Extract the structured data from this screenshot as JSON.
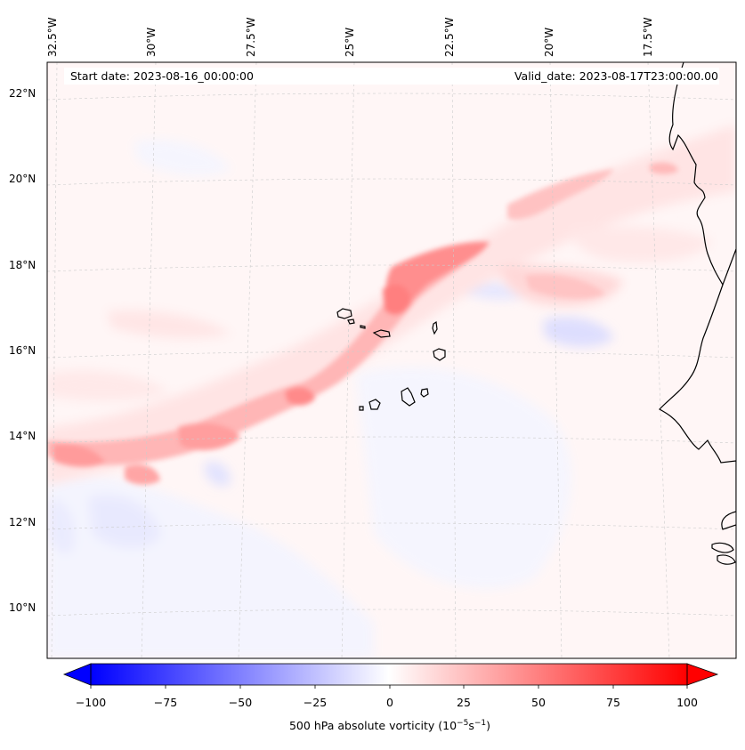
{
  "map": {
    "start_label": "Start date: 2023-08-16_00:00:00",
    "valid_label": "Valid_date: 2023-08-17T23:00:00.00",
    "lon_labels": [
      "32.5°W",
      "30°W",
      "27.5°W",
      "25°W",
      "22.5°W",
      "20°W",
      "17.5°W"
    ],
    "lat_labels": [
      "22°N",
      "20°N",
      "18°N",
      "16°N",
      "14°N",
      "12°N",
      "10°N"
    ],
    "colorbar": {
      "ticks": [
        "−100",
        "−75",
        "−50",
        "−25",
        "0",
        "25",
        "50",
        "75",
        "100"
      ],
      "label_prefix": "500 hPa absolute vorticity (10",
      "label_exp1": "−5",
      "label_mid": "s",
      "label_exp2": "−1",
      "label_suffix": ")",
      "min_color": "#0000ff",
      "mid_color": "#ffffff",
      "max_color": "#ff0000"
    },
    "colors": {
      "coast": "#000000",
      "grid": "#c8c8c8",
      "background_field": "#fff5f5"
    }
  }
}
